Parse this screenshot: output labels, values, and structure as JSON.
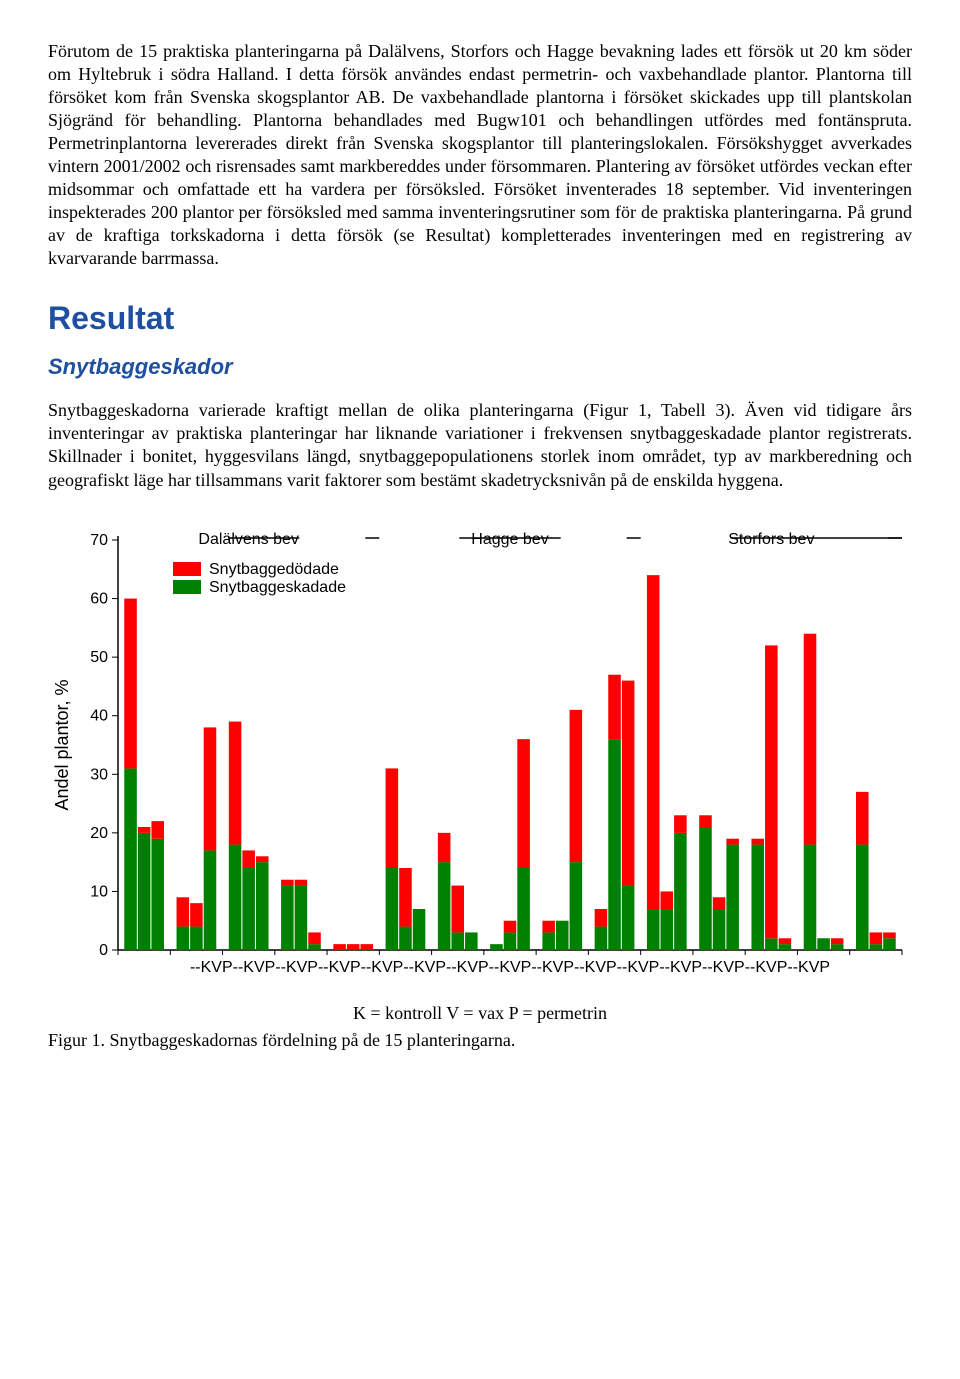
{
  "para1": "Förutom de 15 praktiska planteringarna på Dalälvens, Storfors och Hagge bevakning lades ett försök ut 20 km söder om Hyltebruk i södra Halland. I detta försök användes endast permetrin- och vaxbehandlade plantor. Plantorna till försöket kom från Svenska skogsplantor AB. De vaxbehandlade plantorna i försöket skickades upp till plantskolan Sjögränd för behandling. Plantorna behandlades med Bugw101 och behandlingen utfördes med fontänspruta. Permetrinplantorna levererades direkt från Svenska skogsplantor till planteringslokalen. Försökshygget avverkades vintern 2001/2002 och risrensades samt markbereddes under försommaren. Plantering av försöket utfördes veckan efter midsommar och omfattade ett ha vardera per försöksled. Försöket inventerades 18 september. Vid inventeringen inspekterades 200 plantor per försöksled med samma inventeringsrutiner som för de praktiska planteringarna. På grund av de kraftiga torkskadorna i detta försök (se Resultat) kompletterades inventeringen med en registrering av kvarvarande barrmassa.",
  "heading1": "Resultat",
  "heading2": "Snytbaggeskador",
  "para2": "Snytbaggeskadorna varierade kraftigt mellan de olika planteringarna (Figur 1, Tabell 3). Även vid tidigare års inventeringar av praktiska planteringar har liknande variationer i frekvensen snytbaggeskadade plantor registrerats. Skillnader i bonitet, hyggesvilans längd, snytbaggepopulationens storlek inom området, typ av markberedning och geografiskt läge har tillsammans varit faktorer som bestämt skadetrycksnivån på de enskilda hyggena.",
  "chart": {
    "type": "stacked-bar",
    "ylabel": "Andel plantor, %",
    "ylim": [
      0,
      70
    ],
    "ytick_step": 10,
    "background_color": "#ffffff",
    "axis_color": "#000000",
    "colors": {
      "dead": "#ff0000",
      "damaged": "#008000"
    },
    "legend": {
      "dead": "Snytbaggedödade",
      "damaged": "Snytbaggeskadade"
    },
    "sections": [
      {
        "label": "Dalälvens bev"
      },
      {
        "label": "Hagge bev"
      },
      {
        "label": "Storfors bev"
      }
    ],
    "x_group_label": "--KVP--KVP--KVP--KVP--KVP--KVP--KVP--KVP--KVP--KVP--KVP--KVP--KVP--KVP--KVP",
    "x_explain": "K = kontroll  V = vax  P = permetrin",
    "fig_caption": "Figur 1. Snytbaggeskadornas fördelning på de 15 planteringarna.",
    "groups": [
      {
        "K": {
          "damaged": 31,
          "dead": 29
        },
        "V": {
          "damaged": 20,
          "dead": 1
        },
        "P": {
          "damaged": 19,
          "dead": 3
        }
      },
      {
        "K": {
          "damaged": 4,
          "dead": 5
        },
        "V": {
          "damaged": 4,
          "dead": 4
        },
        "P": {
          "damaged": 17,
          "dead": 21
        }
      },
      {
        "K": {
          "damaged": 18,
          "dead": 21
        },
        "V": {
          "damaged": 14,
          "dead": 3
        },
        "P": {
          "damaged": 15,
          "dead": 1
        }
      },
      {
        "K": {
          "damaged": 11,
          "dead": 1
        },
        "V": {
          "damaged": 11,
          "dead": 1
        },
        "P": {
          "damaged": 1,
          "dead": 2
        }
      },
      {
        "K": {
          "damaged": 0,
          "dead": 1
        },
        "V": {
          "damaged": 0,
          "dead": 1
        },
        "P": {
          "damaged": 0,
          "dead": 1
        }
      },
      {
        "K": {
          "damaged": 14,
          "dead": 17
        },
        "V": {
          "damaged": 4,
          "dead": 10
        },
        "P": {
          "damaged": 7,
          "dead": 0
        }
      },
      {
        "K": {
          "damaged": 15,
          "dead": 5
        },
        "V": {
          "damaged": 3,
          "dead": 8
        },
        "P": {
          "damaged": 3,
          "dead": 0
        }
      },
      {
        "K": {
          "damaged": 1,
          "dead": 0
        },
        "V": {
          "damaged": 3,
          "dead": 2
        },
        "P": {
          "damaged": 14,
          "dead": 22
        }
      },
      {
        "K": {
          "damaged": 3,
          "dead": 2
        },
        "V": {
          "damaged": 5,
          "dead": 0
        },
        "P": {
          "damaged": 15,
          "dead": 26
        }
      },
      {
        "K": {
          "damaged": 4,
          "dead": 3
        },
        "V": {
          "damaged": 36,
          "dead": 11
        },
        "P": {
          "damaged": 11,
          "dead": 35
        }
      },
      {
        "K": {
          "damaged": 7,
          "dead": 57
        },
        "V": {
          "damaged": 7,
          "dead": 3
        },
        "P": {
          "damaged": 20,
          "dead": 3
        }
      },
      {
        "K": {
          "damaged": 21,
          "dead": 2
        },
        "V": {
          "damaged": 7,
          "dead": 2
        },
        "P": {
          "damaged": 18,
          "dead": 1
        }
      },
      {
        "K": {
          "damaged": 18,
          "dead": 1
        },
        "V": {
          "damaged": 2,
          "dead": 50
        },
        "P": {
          "damaged": 1,
          "dead": 1
        }
      },
      {
        "K": {
          "damaged": 18,
          "dead": 36
        },
        "V": {
          "damaged": 2,
          "dead": 0
        },
        "P": {
          "damaged": 1,
          "dead": 1
        }
      },
      {
        "K": {
          "damaged": 18,
          "dead": 9
        },
        "V": {
          "damaged": 1,
          "dead": 2
        },
        "P": {
          "damaged": 2,
          "dead": 1
        }
      }
    ]
  }
}
